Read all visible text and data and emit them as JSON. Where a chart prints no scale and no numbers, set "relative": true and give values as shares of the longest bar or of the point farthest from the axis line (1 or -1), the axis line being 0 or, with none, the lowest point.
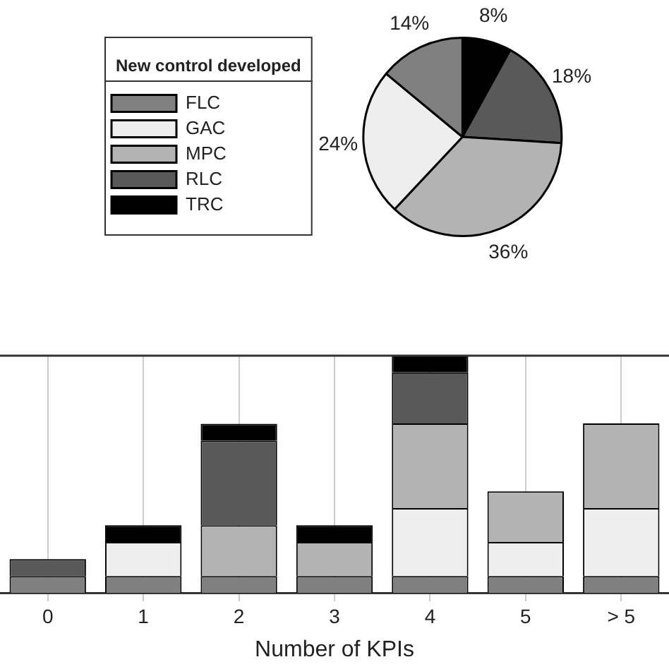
{
  "chart_data": [
    {
      "type": "pie",
      "legend_title": "New control developed",
      "legend": "left",
      "categories": [
        "TRC",
        "RLC",
        "MPC",
        "GAC",
        "FLC"
      ],
      "values": [
        8,
        18,
        36,
        24,
        14
      ],
      "colors": [
        "#000000",
        "#595959",
        "#b3b3b3",
        "#eeeeee",
        "#808080"
      ],
      "value_labels": [
        "8%",
        "18%",
        "36%",
        "24%",
        "14%"
      ]
    },
    {
      "type": "bar",
      "stacked": true,
      "relative": true,
      "grid": "x",
      "xlabel": "Number of KPIs",
      "categories": [
        "0",
        "1",
        "2",
        "3",
        "4",
        "5",
        "> 5"
      ],
      "series": [
        {
          "color": "#808080",
          "values": [
            0.071,
            0.071,
            0.071,
            0.071,
            0.071,
            0.071,
            0.071
          ]
        },
        {
          "color": "#eeeeee",
          "values": [
            null,
            0.143,
            null,
            null,
            0.286,
            0.143,
            0.286
          ]
        },
        {
          "color": "#b3b3b3",
          "values": [
            null,
            null,
            0.214,
            0.143,
            0.357,
            0.214,
            0.357
          ]
        },
        {
          "color": "#595959",
          "values": [
            0.071,
            null,
            0.357,
            null,
            0.215,
            null,
            null
          ]
        },
        {
          "color": "#000000",
          "values": [
            null,
            0.071,
            0.071,
            0.071,
            0.071,
            null,
            null
          ]
        }
      ]
    }
  ]
}
